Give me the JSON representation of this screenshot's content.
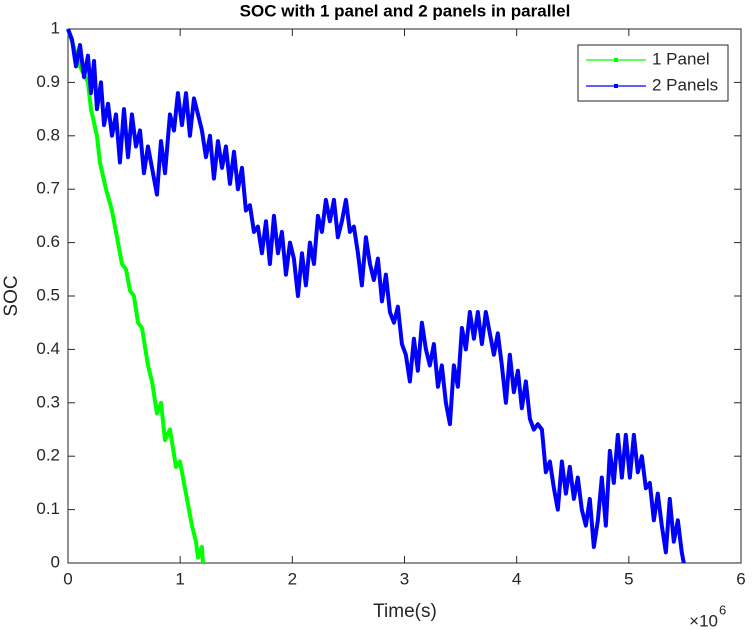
{
  "chart_data": {
    "type": "line",
    "title": "SOC with 1 panel and 2 panels in parallel",
    "x_label": "Time(s)",
    "y_label": "SOC",
    "x_multiplier": "×10",
    "x_multiplier_exponent": "6",
    "xlim": [
      0,
      6
    ],
    "xticks": [
      0,
      1,
      2,
      3,
      4,
      5,
      6
    ],
    "ylim": [
      0,
      1
    ],
    "yticks": [
      0,
      0.1,
      0.2,
      0.3,
      0.4,
      0.5,
      0.6,
      0.7,
      0.8,
      0.9,
      1
    ],
    "grid": false,
    "legend": "northeast",
    "series": [
      {
        "name": "1 Panel",
        "color": "#00ff00",
        "x": [
          0,
          0.107,
          0.178,
          0.205,
          0.258,
          0.285,
          0.339,
          0.392,
          0.446,
          0.481,
          0.517,
          0.553,
          0.588,
          0.624,
          0.66,
          0.713,
          0.749,
          0.793,
          0.829,
          0.865,
          0.909,
          0.963,
          0.998,
          1.052,
          1.105,
          1.141,
          1.159,
          1.194,
          1.203
        ],
        "values": [
          1.0,
          0.93,
          0.9,
          0.85,
          0.8,
          0.75,
          0.7,
          0.66,
          0.6,
          0.56,
          0.55,
          0.51,
          0.5,
          0.45,
          0.44,
          0.37,
          0.34,
          0.28,
          0.3,
          0.23,
          0.25,
          0.18,
          0.19,
          0.13,
          0.07,
          0.04,
          0.01,
          0.03,
          0.0
        ]
      },
      {
        "name": "2 Panels",
        "color": "#0000ff",
        "x": [
          0,
          0.036,
          0.071,
          0.107,
          0.143,
          0.178,
          0.205,
          0.232,
          0.258,
          0.294,
          0.321,
          0.357,
          0.392,
          0.428,
          0.463,
          0.499,
          0.535,
          0.57,
          0.606,
          0.642,
          0.677,
          0.713,
          0.749,
          0.793,
          0.829,
          0.865,
          0.909,
          0.945,
          0.98,
          1.016,
          1.052,
          1.087,
          1.123,
          1.159,
          1.194,
          1.23,
          1.266,
          1.301,
          1.337,
          1.373,
          1.408,
          1.444,
          1.48,
          1.515,
          1.551,
          1.586,
          1.622,
          1.658,
          1.693,
          1.729,
          1.765,
          1.8,
          1.836,
          1.872,
          1.907,
          1.943,
          1.979,
          2.014,
          2.05,
          2.086,
          2.121,
          2.157,
          2.193,
          2.228,
          2.264,
          2.299,
          2.335,
          2.371,
          2.406,
          2.442,
          2.478,
          2.513,
          2.549,
          2.585,
          2.62,
          2.656,
          2.692,
          2.727,
          2.763,
          2.799,
          2.834,
          2.87,
          2.906,
          2.941,
          2.977,
          3.012,
          3.048,
          3.084,
          3.119,
          3.155,
          3.191,
          3.226,
          3.262,
          3.298,
          3.333,
          3.369,
          3.405,
          3.44,
          3.476,
          3.512,
          3.547,
          3.583,
          3.619,
          3.654,
          3.69,
          3.725,
          3.761,
          3.797,
          3.832,
          3.868,
          3.904,
          3.939,
          3.975,
          4.011,
          4.046,
          4.082,
          4.118,
          4.153,
          4.189,
          4.225,
          4.26,
          4.296,
          4.332,
          4.367,
          4.403,
          4.439,
          4.474,
          4.51,
          4.545,
          4.581,
          4.617,
          4.652,
          4.688,
          4.724,
          4.759,
          4.795,
          4.831,
          4.866,
          4.902,
          4.938,
          4.973,
          5.009,
          5.045,
          5.08,
          5.116,
          5.152,
          5.187,
          5.223,
          5.258,
          5.294,
          5.33,
          5.365,
          5.401,
          5.437,
          5.472,
          5.49
        ],
        "values": [
          1.0,
          0.98,
          0.93,
          0.97,
          0.91,
          0.95,
          0.88,
          0.94,
          0.85,
          0.9,
          0.82,
          0.86,
          0.8,
          0.84,
          0.75,
          0.85,
          0.76,
          0.84,
          0.78,
          0.81,
          0.73,
          0.78,
          0.74,
          0.69,
          0.79,
          0.73,
          0.84,
          0.81,
          0.88,
          0.82,
          0.88,
          0.8,
          0.87,
          0.84,
          0.81,
          0.76,
          0.8,
          0.72,
          0.79,
          0.74,
          0.78,
          0.71,
          0.77,
          0.7,
          0.74,
          0.66,
          0.67,
          0.62,
          0.63,
          0.58,
          0.64,
          0.56,
          0.65,
          0.58,
          0.62,
          0.54,
          0.6,
          0.57,
          0.5,
          0.58,
          0.52,
          0.6,
          0.56,
          0.65,
          0.62,
          0.68,
          0.64,
          0.68,
          0.61,
          0.64,
          0.68,
          0.62,
          0.63,
          0.58,
          0.52,
          0.61,
          0.56,
          0.53,
          0.57,
          0.49,
          0.54,
          0.47,
          0.45,
          0.48,
          0.41,
          0.39,
          0.34,
          0.42,
          0.36,
          0.45,
          0.4,
          0.37,
          0.41,
          0.33,
          0.37,
          0.3,
          0.26,
          0.37,
          0.33,
          0.44,
          0.4,
          0.47,
          0.42,
          0.47,
          0.41,
          0.47,
          0.43,
          0.39,
          0.43,
          0.37,
          0.3,
          0.39,
          0.32,
          0.36,
          0.29,
          0.34,
          0.27,
          0.25,
          0.26,
          0.25,
          0.17,
          0.19,
          0.14,
          0.1,
          0.19,
          0.13,
          0.18,
          0.12,
          0.16,
          0.1,
          0.07,
          0.12,
          0.03,
          0.08,
          0.16,
          0.07,
          0.21,
          0.15,
          0.24,
          0.16,
          0.24,
          0.16,
          0.24,
          0.17,
          0.2,
          0.14,
          0.15,
          0.08,
          0.13,
          0.07,
          0.02,
          0.12,
          0.04,
          0.08,
          0.02,
          0.0
        ]
      }
    ]
  }
}
